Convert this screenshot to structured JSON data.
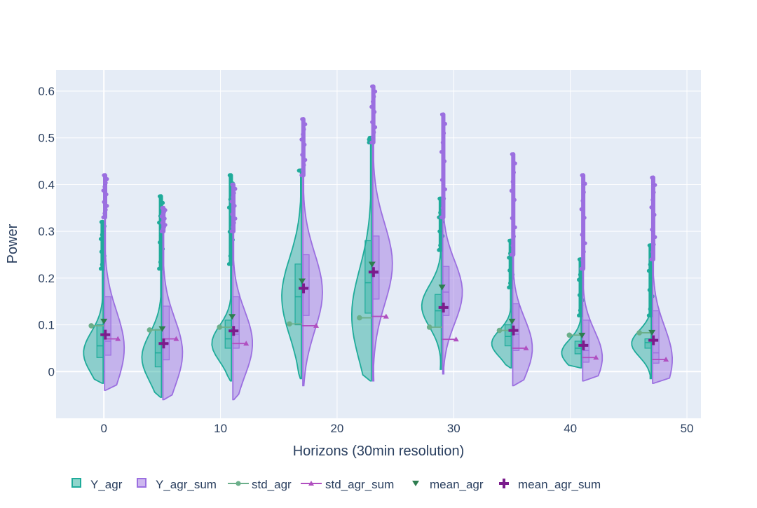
{
  "colors": {
    "plot_bg": "#E5ECF6",
    "grid": "#ffffff",
    "text": "#2a3f5f",
    "teal": "#1FAB9A",
    "purple": "#9B6FE0",
    "std_agr": "#6BAF8A",
    "std_agr_sum": "#B04FC0",
    "mean_agr": "#2E7D50",
    "mean_agr_sum": "#7B1C8C"
  },
  "chart_data": {
    "type": "violin",
    "xlabel": "Horizons (30min resolution)",
    "ylabel": "Power",
    "xlim": [
      -4.1,
      51.2
    ],
    "ylim": [
      -0.1,
      0.645
    ],
    "xticks": [
      0,
      10,
      20,
      30,
      40,
      50
    ],
    "yticks": [
      0,
      0.1,
      0.2,
      0.3,
      0.4,
      0.5,
      0.6
    ],
    "ytick_labels": [
      "0",
      "0.1",
      "0.2",
      "0.3",
      "0.4",
      "0.5",
      "0.6"
    ],
    "grid": true,
    "legend_position": "bottom",
    "legend": [
      "Y_agr",
      "Y_agr_sum",
      "std_agr",
      "std_agr_sum",
      "mean_agr",
      "mean_agr_sum"
    ],
    "horizons": [
      0,
      5,
      11,
      17,
      23,
      29,
      35,
      41,
      47
    ],
    "series": [
      {
        "name": "Y_agr",
        "kind": "violin-left",
        "min": [
          -0.025,
          -0.055,
          -0.02,
          -0.015,
          -0.02,
          0.005,
          0.008,
          0.008,
          -0.015
        ],
        "max": [
          0.32,
          0.375,
          0.42,
          0.43,
          0.5,
          0.37,
          0.28,
          0.24,
          0.27
        ],
        "mode": [
          0.04,
          0.03,
          0.06,
          0.16,
          0.12,
          0.14,
          0.06,
          0.04,
          0.06
        ],
        "q1": [
          0.03,
          0.01,
          0.05,
          0.1,
          0.125,
          0.095,
          0.055,
          0.038,
          0.05
        ],
        "median": [
          0.055,
          0.04,
          0.07,
          0.16,
          0.19,
          0.13,
          0.075,
          0.05,
          0.062
        ],
        "q3": [
          0.1,
          0.09,
          0.11,
          0.23,
          0.28,
          0.165,
          0.1,
          0.065,
          0.07
        ],
        "outliers_from": [
          0.22,
          0.22,
          0.23,
          0.43,
          0.49,
          0.26,
          0.18,
          0.12,
          0.12
        ]
      },
      {
        "name": "Y_agr_sum",
        "kind": "violin-right",
        "min": [
          -0.04,
          -0.06,
          -0.06,
          -0.03,
          -0.02,
          -0.005,
          -0.03,
          -0.02,
          -0.025
        ],
        "max": [
          0.42,
          0.35,
          0.4,
          0.54,
          0.61,
          0.55,
          0.465,
          0.42,
          0.415
        ],
        "mode": [
          0.05,
          0.04,
          0.06,
          0.17,
          0.23,
          0.17,
          0.05,
          0.03,
          0.025
        ],
        "q1": [
          0.035,
          0.025,
          0.05,
          0.12,
          0.155,
          0.12,
          0.045,
          0.02,
          0.018
        ],
        "median": [
          0.065,
          0.06,
          0.08,
          0.18,
          0.21,
          0.17,
          0.08,
          0.045,
          0.04
        ],
        "q3": [
          0.16,
          0.14,
          0.16,
          0.25,
          0.29,
          0.225,
          0.145,
          0.11,
          0.13
        ],
        "outliers_from": [
          0.33,
          0.3,
          0.3,
          0.42,
          0.49,
          0.33,
          0.25,
          0.22,
          0.24
        ]
      },
      {
        "name": "std_agr",
        "kind": "line-marker",
        "values": [
          0.098,
          0.089,
          0.095,
          0.102,
          0.115,
          0.095,
          0.088,
          0.078,
          0.083
        ]
      },
      {
        "name": "std_agr_sum",
        "kind": "line-marker",
        "values": [
          0.07,
          0.07,
          0.06,
          0.098,
          0.118,
          0.069,
          0.05,
          0.03,
          0.026
        ]
      },
      {
        "name": "mean_agr",
        "kind": "marker",
        "values": [
          0.107,
          0.091,
          0.117,
          0.193,
          0.229,
          0.18,
          0.107,
          0.077,
          0.083
        ]
      },
      {
        "name": "mean_agr_sum",
        "kind": "marker",
        "values": [
          0.079,
          0.06,
          0.087,
          0.178,
          0.213,
          0.137,
          0.088,
          0.056,
          0.067
        ]
      }
    ]
  }
}
